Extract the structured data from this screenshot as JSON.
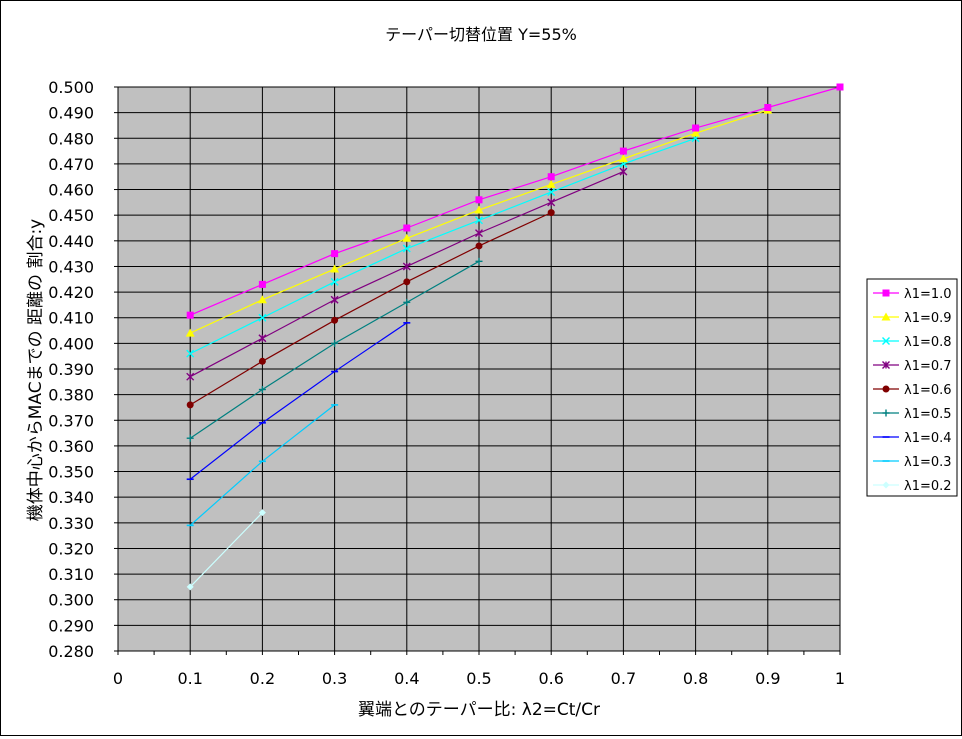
{
  "chart_data": {
    "type": "line",
    "title": "テーパー切替位置 Y=55%",
    "xlabel": "翼端とのテーパー比: λ2=Ct/Cr",
    "ylabel": "機体中心からMACまでの 距離の 割合:y",
    "xlim": [
      0,
      1
    ],
    "ylim": [
      0.28,
      0.5
    ],
    "x_ticks": [
      "0",
      "0.1",
      "0.2",
      "0.3",
      "0.4",
      "0.5",
      "0.6",
      "0.7",
      "0.8",
      "0.9",
      "1"
    ],
    "y_ticks": [
      "0.280",
      "0.290",
      "0.300",
      "0.310",
      "0.320",
      "0.330",
      "0.340",
      "0.350",
      "0.360",
      "0.370",
      "0.380",
      "0.390",
      "0.400",
      "0.410",
      "0.420",
      "0.430",
      "0.440",
      "0.450",
      "0.460",
      "0.470",
      "0.480",
      "0.490",
      "0.500"
    ],
    "grid": true,
    "plot_background": "#c0c0c0",
    "legend_position": "right",
    "series": [
      {
        "name": "λ1=1.0",
        "color": "#ff00ff",
        "marker": "square",
        "x": [
          0.1,
          0.2,
          0.3,
          0.4,
          0.5,
          0.6,
          0.7,
          0.8,
          0.9,
          1.0
        ],
        "y": [
          0.411,
          0.423,
          0.435,
          0.445,
          0.456,
          0.465,
          0.475,
          0.484,
          0.492,
          0.5
        ]
      },
      {
        "name": "λ1=0.9",
        "color": "#ffff00",
        "marker": "triangle",
        "x": [
          0.1,
          0.2,
          0.3,
          0.4,
          0.5,
          0.6,
          0.7,
          0.8,
          0.9
        ],
        "y": [
          0.404,
          0.417,
          0.429,
          0.441,
          0.452,
          0.462,
          0.472,
          0.482,
          0.491
        ]
      },
      {
        "name": "λ1=0.8",
        "color": "#00ffff",
        "marker": "x",
        "x": [
          0.1,
          0.2,
          0.3,
          0.4,
          0.5,
          0.6,
          0.7,
          0.8
        ],
        "y": [
          0.396,
          0.41,
          0.424,
          0.437,
          0.448,
          0.459,
          0.47,
          0.48
        ]
      },
      {
        "name": "λ1=0.7",
        "color": "#800080",
        "marker": "star",
        "x": [
          0.1,
          0.2,
          0.3,
          0.4,
          0.5,
          0.6,
          0.7
        ],
        "y": [
          0.387,
          0.402,
          0.417,
          0.43,
          0.443,
          0.455,
          0.467
        ]
      },
      {
        "name": "λ1=0.6",
        "color": "#800000",
        "marker": "circle",
        "x": [
          0.1,
          0.2,
          0.3,
          0.4,
          0.5,
          0.6
        ],
        "y": [
          0.376,
          0.393,
          0.409,
          0.424,
          0.438,
          0.451
        ]
      },
      {
        "name": "λ1=0.5",
        "color": "#008080",
        "marker": "plus",
        "x": [
          0.1,
          0.2,
          0.3,
          0.4,
          0.5
        ],
        "y": [
          0.363,
          0.382,
          0.4,
          0.416,
          0.432
        ]
      },
      {
        "name": "λ1=0.4",
        "color": "#0000ff",
        "marker": "dash",
        "x": [
          0.1,
          0.2,
          0.3,
          0.4
        ],
        "y": [
          0.347,
          0.369,
          0.389,
          0.408
        ]
      },
      {
        "name": "λ1=0.3",
        "color": "#00ccff",
        "marker": "dash",
        "x": [
          0.1,
          0.2,
          0.3
        ],
        "y": [
          0.329,
          0.354,
          0.376
        ]
      },
      {
        "name": "λ1=0.2",
        "color": "#ccffff",
        "marker": "diamond",
        "x": [
          0.1,
          0.2
        ],
        "y": [
          0.305,
          0.334
        ]
      }
    ]
  }
}
